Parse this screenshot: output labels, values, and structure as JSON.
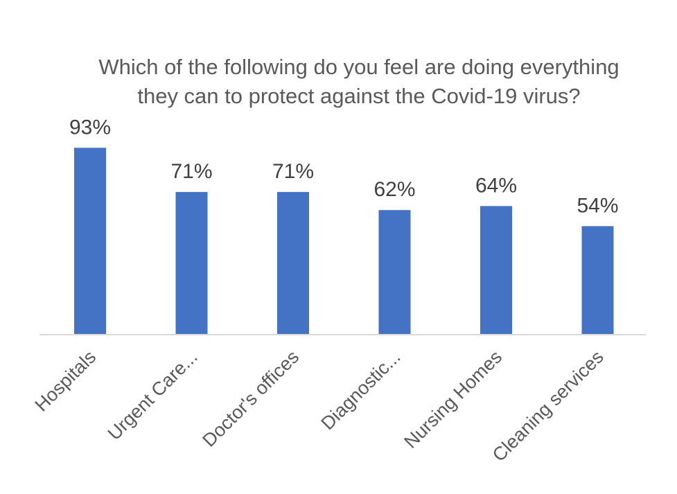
{
  "chart_data": {
    "type": "bar",
    "title": "Which of the following do you feel are doing everything they can to protect against the Covid-19 virus?",
    "categories": [
      "Hospitals",
      "Urgent Care...",
      "Doctor's offices",
      "Diagnostic...",
      "Nursing Homes",
      "Cleaning services"
    ],
    "values": [
      93,
      71,
      71,
      62,
      64,
      54
    ],
    "value_labels": [
      "93%",
      "71%",
      "71%",
      "62%",
      "64%",
      "54%"
    ],
    "ylim": [
      0,
      100
    ],
    "grid": false,
    "legend": "none",
    "bar_color": "#4472C4"
  }
}
